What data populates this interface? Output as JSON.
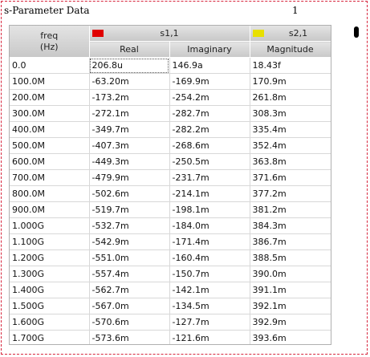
{
  "title": "s-Parameter Data",
  "page_number": "1",
  "colors": {
    "s11_marker": "#e00000",
    "s21_marker": "#e8e000",
    "frame": "#d7263d"
  },
  "table": {
    "freq_header_line1": "freq",
    "freq_header_line2": "(Hz)",
    "group1": {
      "label": "s1,1",
      "col_a": "Real",
      "col_b": "Imaginary"
    },
    "group2": {
      "label": "s2,1",
      "col_a": "Magnitude"
    },
    "rows": [
      [
        "0.0",
        "206.8u",
        "146.9a",
        "18.43f"
      ],
      [
        "100.0M",
        "-63.20m",
        "-169.9m",
        "170.9m"
      ],
      [
        "200.0M",
        "-173.2m",
        "-254.2m",
        "261.8m"
      ],
      [
        "300.0M",
        "-272.1m",
        "-282.7m",
        "308.3m"
      ],
      [
        "400.0M",
        "-349.7m",
        "-282.2m",
        "335.4m"
      ],
      [
        "500.0M",
        "-407.3m",
        "-268.6m",
        "352.4m"
      ],
      [
        "600.0M",
        "-449.3m",
        "-250.5m",
        "363.8m"
      ],
      [
        "700.0M",
        "-479.9m",
        "-231.7m",
        "371.6m"
      ],
      [
        "800.0M",
        "-502.6m",
        "-214.1m",
        "377.2m"
      ],
      [
        "900.0M",
        "-519.7m",
        "-198.1m",
        "381.2m"
      ],
      [
        "1.000G",
        "-532.7m",
        "-184.0m",
        "384.3m"
      ],
      [
        "1.100G",
        "-542.9m",
        "-171.4m",
        "386.7m"
      ],
      [
        "1.200G",
        "-551.0m",
        "-160.4m",
        "388.5m"
      ],
      [
        "1.300G",
        "-557.4m",
        "-150.7m",
        "390.0m"
      ],
      [
        "1.400G",
        "-562.7m",
        "-142.1m",
        "391.1m"
      ],
      [
        "1.500G",
        "-567.0m",
        "-134.5m",
        "392.1m"
      ],
      [
        "1.600G",
        "-570.6m",
        "-127.7m",
        "392.9m"
      ],
      [
        "1.700G",
        "-573.6m",
        "-121.6m",
        "393.6m"
      ]
    ]
  }
}
